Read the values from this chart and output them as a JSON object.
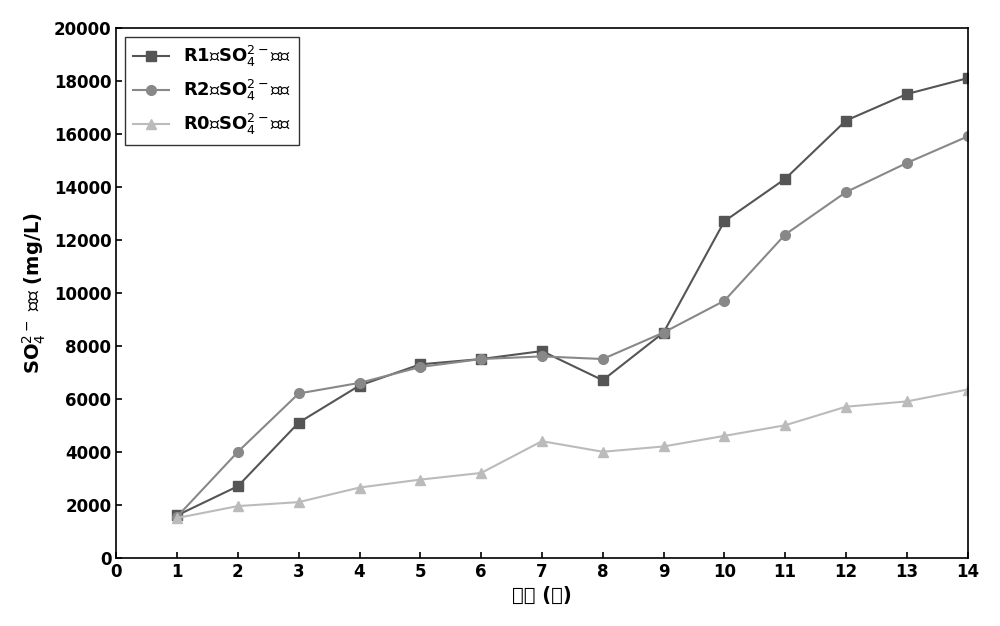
{
  "x": [
    1,
    2,
    3,
    4,
    5,
    6,
    7,
    8,
    9,
    10,
    11,
    12,
    13,
    14
  ],
  "R1": [
    1600,
    2700,
    5100,
    6500,
    7300,
    7500,
    7800,
    6700,
    8500,
    12700,
    14300,
    16500,
    17500,
    18100
  ],
  "R2": [
    1550,
    4000,
    6200,
    6600,
    7200,
    7500,
    7600,
    7500,
    8500,
    9700,
    12200,
    13800,
    14900,
    15900
  ],
  "R0": [
    1500,
    1950,
    2100,
    2650,
    2950,
    3200,
    4400,
    4000,
    4200,
    4600,
    5000,
    5700,
    5900,
    6350
  ],
  "R1_color": "#555555",
  "R2_color": "#888888",
  "R0_color": "#bbbbbb",
  "ylim": [
    0,
    20000
  ],
  "xlim": [
    0,
    14
  ],
  "yticks": [
    0,
    2000,
    4000,
    6000,
    8000,
    10000,
    12000,
    14000,
    16000,
    18000,
    20000
  ],
  "xticks": [
    0,
    1,
    2,
    3,
    4,
    5,
    6,
    7,
    8,
    9,
    10,
    11,
    12,
    13,
    14
  ],
  "bg_color": "#ffffff",
  "linewidth": 1.5,
  "markersize": 7
}
